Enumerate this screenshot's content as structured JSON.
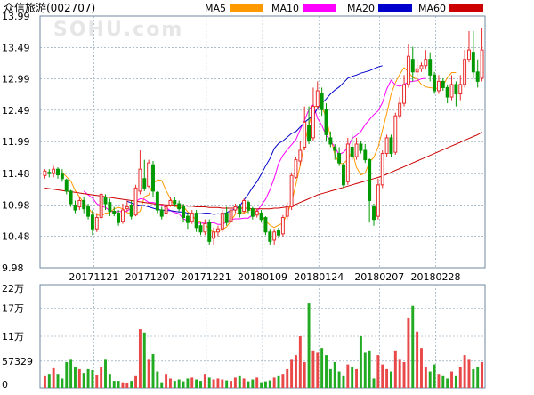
{
  "title": "众信旅游(002707)",
  "watermark": "SOHU.com",
  "legend": [
    {
      "label": "MA5",
      "color": "#ff9900"
    },
    {
      "label": "MA10",
      "color": "#ff00ff"
    },
    {
      "label": "MA20",
      "color": "#0000cc"
    },
    {
      "label": "MA60",
      "color": "#cc0000"
    }
  ],
  "colors": {
    "up": "#e82c2c",
    "down": "#009900",
    "grid": "#7e9ab0"
  },
  "chart_data": [
    {
      "type": "candlestick",
      "title": "",
      "ylim": [
        9.98,
        13.99
      ],
      "y_ticks": [
        "13.99",
        "13.49",
        "12.99",
        "12.49",
        "11.99",
        "11.48",
        "10.98",
        "10.48",
        "9.98"
      ],
      "x_tick_labels": [
        "20171121",
        "20171207",
        "20171221",
        "20180109",
        "20180124",
        "20180207",
        "20180228"
      ],
      "x_tick_index": [
        10,
        23,
        36,
        49,
        62,
        76,
        89
      ],
      "candles": [
        [
          11.45,
          11.52,
          11.4,
          11.55
        ],
        [
          11.5,
          11.48,
          11.42,
          11.55
        ],
        [
          11.48,
          11.55,
          11.42,
          11.6
        ],
        [
          11.55,
          11.46,
          11.4,
          11.58
        ],
        [
          11.47,
          11.4,
          11.35,
          11.55
        ],
        [
          11.38,
          11.2,
          11.15,
          11.4
        ],
        [
          11.2,
          11.0,
          10.95,
          11.22
        ],
        [
          10.98,
          10.9,
          10.85,
          11.05
        ],
        [
          10.95,
          11.05,
          10.9,
          11.1
        ],
        [
          11.05,
          10.92,
          10.85,
          11.1
        ],
        [
          10.95,
          10.8,
          10.75,
          11.0
        ],
        [
          10.82,
          10.6,
          10.5,
          10.9
        ],
        [
          10.6,
          10.78,
          10.55,
          10.85
        ],
        [
          10.78,
          11.15,
          10.75,
          11.18
        ],
        [
          11.1,
          11.0,
          10.9,
          11.15
        ],
        [
          11.02,
          10.88,
          10.8,
          11.08
        ],
        [
          10.88,
          10.85,
          10.8,
          10.95
        ],
        [
          10.85,
          10.7,
          10.65,
          10.9
        ],
        [
          10.72,
          10.9,
          10.68,
          11.0
        ],
        [
          10.92,
          10.95,
          10.88,
          11.05
        ],
        [
          10.98,
          10.8,
          10.75,
          11.05
        ],
        [
          10.82,
          11.25,
          10.8,
          11.3
        ],
        [
          11.2,
          11.55,
          11.15,
          11.85
        ],
        [
          11.4,
          11.25,
          11.2,
          11.7
        ],
        [
          11.28,
          11.65,
          11.25,
          11.7
        ],
        [
          11.62,
          11.2,
          11.1,
          11.68
        ],
        [
          11.18,
          10.9,
          10.85,
          11.2
        ],
        [
          10.9,
          10.8,
          10.75,
          10.95
        ],
        [
          10.85,
          10.95,
          10.78,
          11.0
        ],
        [
          10.98,
          11.05,
          10.95,
          11.1
        ],
        [
          11.05,
          11.0,
          10.95,
          11.1
        ],
        [
          11.0,
          10.92,
          10.88,
          11.05
        ],
        [
          10.95,
          10.78,
          10.7,
          11.0
        ],
        [
          10.8,
          10.7,
          10.6,
          10.85
        ],
        [
          10.72,
          10.85,
          10.68,
          10.9
        ],
        [
          10.85,
          10.62,
          10.55,
          10.9
        ],
        [
          10.65,
          10.55,
          10.5,
          10.7
        ],
        [
          10.55,
          10.68,
          10.5,
          10.75
        ],
        [
          10.7,
          10.4,
          10.35,
          10.75
        ],
        [
          10.45,
          10.55,
          10.35,
          10.62
        ],
        [
          10.55,
          10.6,
          10.48,
          10.65
        ],
        [
          10.6,
          10.85,
          10.55,
          10.9
        ],
        [
          10.85,
          10.7,
          10.65,
          10.95
        ],
        [
          10.72,
          10.9,
          10.68,
          10.98
        ],
        [
          10.9,
          10.95,
          10.85,
          11.0
        ],
        [
          10.95,
          10.85,
          10.78,
          11.0
        ],
        [
          10.88,
          11.05,
          10.85,
          11.08
        ],
        [
          11.02,
          10.9,
          10.85,
          11.05
        ],
        [
          10.92,
          10.8,
          10.75,
          10.95
        ],
        [
          10.82,
          10.88,
          10.78,
          10.92
        ],
        [
          10.85,
          10.75,
          10.7,
          10.9
        ],
        [
          10.78,
          10.55,
          10.5,
          10.8
        ],
        [
          10.55,
          10.4,
          10.35,
          10.6
        ],
        [
          10.42,
          10.55,
          10.35,
          10.6
        ],
        [
          10.58,
          10.5,
          10.45,
          10.62
        ],
        [
          10.52,
          10.78,
          10.48,
          10.82
        ],
        [
          10.8,
          10.95,
          10.75,
          11.02
        ],
        [
          10.95,
          11.45,
          10.9,
          11.5
        ],
        [
          11.42,
          11.7,
          11.4,
          11.75
        ],
        [
          11.68,
          11.85,
          11.6,
          12.0
        ],
        [
          11.9,
          12.3,
          11.85,
          12.55
        ],
        [
          12.25,
          12.0,
          11.95,
          12.55
        ],
        [
          12.05,
          12.55,
          12.0,
          12.85
        ],
        [
          12.55,
          12.8,
          12.5,
          12.95
        ],
        [
          12.75,
          12.5,
          12.4,
          12.85
        ],
        [
          12.5,
          12.1,
          12.0,
          12.6
        ],
        [
          12.05,
          11.95,
          11.9,
          12.15
        ],
        [
          11.9,
          11.85,
          11.7,
          11.95
        ],
        [
          11.8,
          11.65,
          11.6,
          11.9
        ],
        [
          11.62,
          11.3,
          11.25,
          11.65
        ],
        [
          11.35,
          11.95,
          11.3,
          12.05
        ],
        [
          11.9,
          11.75,
          11.7,
          12.1
        ],
        [
          11.75,
          11.95,
          11.7,
          12.05
        ],
        [
          11.95,
          11.85,
          11.8,
          12.0
        ],
        [
          11.85,
          11.7,
          11.65,
          11.95
        ],
        [
          11.7,
          11.05,
          10.7,
          11.72
        ],
        [
          10.95,
          10.75,
          10.65,
          11.0
        ],
        [
          10.8,
          11.3,
          10.75,
          11.4
        ],
        [
          11.3,
          11.8,
          11.25,
          11.85
        ],
        [
          11.8,
          12.05,
          11.75,
          12.1
        ],
        [
          12.05,
          11.8,
          11.75,
          12.1
        ],
        [
          11.82,
          12.4,
          11.78,
          12.45
        ],
        [
          12.4,
          12.6,
          12.35,
          12.7
        ],
        [
          12.6,
          12.9,
          12.55,
          13.05
        ],
        [
          12.9,
          13.35,
          12.85,
          13.55
        ],
        [
          13.3,
          13.1,
          12.95,
          13.5
        ],
        [
          13.1,
          13.15,
          12.95,
          13.3
        ],
        [
          13.15,
          13.2,
          13.1,
          13.25
        ],
        [
          13.2,
          13.3,
          13.15,
          13.45
        ],
        [
          13.3,
          13.05,
          12.95,
          13.4
        ],
        [
          13.05,
          12.8,
          12.75,
          13.1
        ],
        [
          12.8,
          12.95,
          12.75,
          13.05
        ],
        [
          12.95,
          12.85,
          12.8,
          13.0
        ],
        [
          12.85,
          12.7,
          12.6,
          12.9
        ],
        [
          12.7,
          12.9,
          12.65,
          13.05
        ],
        [
          12.9,
          12.75,
          12.55,
          12.95
        ],
        [
          12.75,
          12.9,
          12.65,
          13.05
        ],
        [
          12.9,
          13.3,
          12.85,
          13.45
        ],
        [
          13.3,
          13.45,
          13.25,
          13.75
        ],
        [
          13.4,
          13.1,
          13.0,
          13.75
        ],
        [
          13.1,
          12.95,
          12.85,
          13.3
        ],
        [
          13.0,
          13.45,
          12.95,
          13.8
        ]
      ],
      "ma_series": [
        {
          "name": "MA5",
          "color": "#ff9900",
          "start": 4,
          "values": [
            11.5,
            11.43,
            11.36,
            11.21,
            11.11,
            11.01,
            10.93,
            10.85,
            10.83,
            10.8,
            10.85,
            10.86,
            10.92,
            10.94,
            10.92,
            10.86,
            10.84,
            10.84,
            10.88,
            11.11,
            11.14,
            11.32,
            11.38,
            11.37,
            11.21,
            11.08,
            10.97,
            10.92,
            10.96,
            10.87,
            10.82,
            10.73,
            10.72,
            10.67,
            10.6,
            10.54,
            10.56,
            10.59,
            10.63,
            10.73,
            10.83,
            10.87,
            10.85,
            10.89,
            10.91,
            10.88,
            10.81,
            10.73,
            10.66,
            10.62,
            10.66,
            10.69,
            10.84,
            11.02,
            11.31,
            11.61,
            11.96,
            12.25,
            12.53,
            12.57,
            12.55,
            12.37,
            12.06,
            11.78,
            11.64,
            11.64,
            11.71,
            11.84,
            11.58,
            11.46,
            11.49,
            11.66,
            11.74,
            11.9,
            12.17,
            12.44,
            12.75,
            12.93,
            13.06,
            13.17,
            13.1,
            13.01,
            12.99,
            12.9,
            12.86,
            12.85,
            12.84,
            12.84,
            12.88,
            13.01,
            13.09,
            13.09
          ]
        },
        {
          "name": "MA10",
          "color": "#ff00ff",
          "start": 9,
          "values": [
            11.2,
            11.14,
            11.09,
            11.0,
            10.96,
            10.94,
            10.89,
            10.86,
            10.88,
            10.87,
            10.88,
            10.94,
            11.03,
            11.08,
            11.07,
            11.02,
            11.02,
            11.0,
            10.98,
            10.94,
            10.89,
            10.86,
            10.84,
            10.76,
            10.73,
            10.73,
            10.69,
            10.69,
            10.69,
            10.69,
            10.7,
            10.67,
            10.67,
            10.71,
            10.75,
            10.76,
            10.76,
            10.77,
            10.77,
            10.82,
            10.87,
            10.98,
            11.07,
            11.22,
            11.41,
            11.64,
            11.77,
            11.86,
            11.94,
            12.02,
            12.18,
            12.33,
            12.5,
            12.58,
            12.36,
            12.25,
            12.09,
            12.0,
            11.9,
            11.78,
            11.82,
            11.89,
            12.04,
            12.09,
            12.15,
            12.26,
            12.34,
            12.42,
            12.48,
            12.61,
            12.83,
            12.97,
            12.89,
            12.87,
            12.9,
            12.94,
            12.95,
            12.96,
            12.99,
            13.0
          ]
        },
        {
          "name": "MA20",
          "color": "#0000cc",
          "start": 19,
          "values": [
            11.04,
            11.01,
            10.99,
            10.97,
            10.97,
            10.95,
            10.93,
            10.91,
            10.9,
            10.89,
            10.89,
            10.88,
            10.87,
            10.87,
            10.85,
            10.83,
            10.84,
            10.84,
            10.85,
            10.85,
            10.83,
            10.84,
            10.83,
            10.86,
            10.89,
            10.92,
            10.96,
            11.06,
            11.15,
            11.26,
            11.35,
            11.47,
            11.6,
            11.72,
            11.88,
            11.96,
            12.0,
            12.06,
            12.12,
            12.15,
            12.22,
            12.3,
            12.35,
            12.4,
            12.52,
            12.6,
            12.67,
            12.75,
            12.81,
            12.86,
            12.93,
            13.0,
            13.03,
            13.05,
            13.08,
            13.1,
            13.12,
            13.15,
            13.18,
            13.2
          ]
        },
        {
          "name": "MA60",
          "color": "#cc0000",
          "start": 0,
          "values": [
            11.25,
            11.24,
            11.23,
            11.22,
            11.21,
            11.2,
            11.19,
            11.18,
            11.17,
            11.16,
            11.15,
            11.14,
            11.13,
            11.12,
            11.11,
            11.1,
            11.09,
            11.08,
            11.07,
            11.06,
            11.05,
            11.04,
            11.03,
            11.02,
            11.01,
            11.0,
            10.99,
            10.99,
            10.98,
            10.98,
            10.98,
            10.97,
            10.97,
            10.96,
            10.96,
            10.95,
            10.95,
            10.95,
            10.94,
            10.94,
            10.94,
            10.93,
            10.93,
            10.93,
            10.93,
            10.93,
            10.93,
            10.93,
            10.92,
            10.92,
            10.92,
            10.92,
            10.92,
            10.93,
            10.93,
            10.94,
            10.95,
            10.97,
            10.99,
            11.02,
            11.05,
            11.08,
            11.11,
            11.14,
            11.16,
            11.18,
            11.2,
            11.22,
            11.24,
            11.26,
            11.28,
            11.3,
            11.32,
            11.34,
            11.36,
            11.38,
            11.4,
            11.42,
            11.44,
            11.47,
            11.5,
            11.53,
            11.56,
            11.59,
            11.62,
            11.65,
            11.68,
            11.71,
            11.74,
            11.77,
            11.8,
            11.83,
            11.86,
            11.89,
            11.92,
            11.95,
            11.98,
            12.01,
            12.04,
            12.07,
            12.1,
            12.14
          ]
        }
      ]
    },
    {
      "type": "bar",
      "title": "",
      "y_ticks": [
        "22万",
        "17万",
        "11万",
        "57329",
        "0"
      ],
      "y_tick_values": [
        220000,
        170000,
        110000,
        57329,
        0
      ],
      "ylim": [
        0,
        220000
      ],
      "volumes": [
        25000,
        30000,
        42000,
        30000,
        20000,
        55000,
        60000,
        45000,
        40000,
        32000,
        40000,
        38000,
        28000,
        45000,
        60000,
        30000,
        15000,
        15000,
        12000,
        10000,
        15000,
        25000,
        125000,
        118000,
        60000,
        72000,
        35000,
        12000,
        30000,
        20000,
        15000,
        18000,
        14000,
        20000,
        22000,
        18000,
        15000,
        30000,
        22000,
        18000,
        20000,
        18000,
        16000,
        15000,
        22000,
        25000,
        20000,
        14000,
        18000,
        22000,
        12000,
        14000,
        16000,
        22000,
        25000,
        30000,
        40000,
        60000,
        70000,
        110000,
        55000,
        180000,
        80000,
        75000,
        85000,
        70000,
        40000,
        55000,
        35000,
        25000,
        50000,
        45000,
        40000,
        110000,
        75000,
        80000,
        20000,
        70000,
        50000,
        40000,
        35000,
        80000,
        60000,
        55000,
        150000,
        175000,
        120000,
        85000,
        45000,
        35000,
        50000,
        30000,
        25000,
        20000,
        35000,
        25000,
        45000,
        70000,
        60000,
        40000,
        45000,
        55000
      ]
    }
  ]
}
